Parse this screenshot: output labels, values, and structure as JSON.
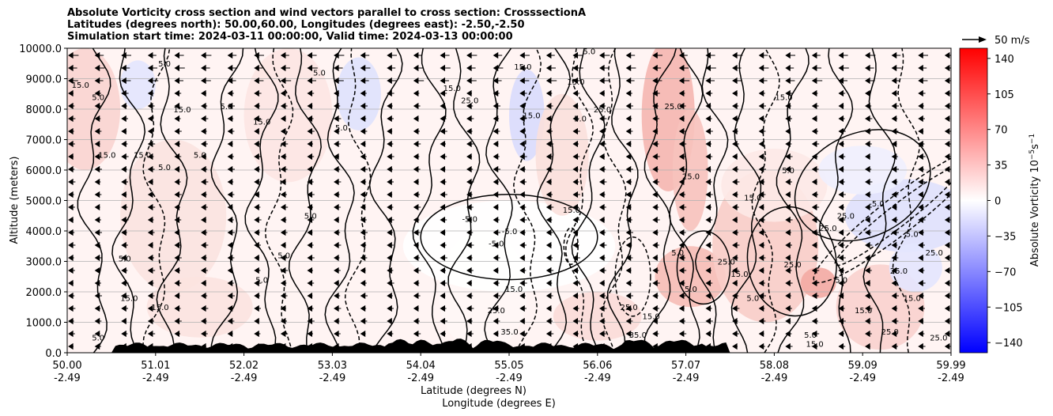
{
  "title_lines": [
    "Absolute Vorticity cross section and wind vectors parallel to cross section: CrosssectionA",
    "Latitudes (degrees north): 50.00,60.00, Longitudes (degrees east): -2.50,-2.50",
    "Simulation start time: 2024-03-11 00:00:00, Valid time: 2024-03-13 00:00:00"
  ],
  "chart_data": {
    "type": "heatmap",
    "ylabel": "Altitude (meters)",
    "xlabel_lines": [
      "Latitude (degrees N)",
      "Longitude (degrees E)"
    ],
    "y_ticks": [
      "0.0",
      "1000.0",
      "2000.0",
      "3000.0",
      "4000.0",
      "5000.0",
      "6000.0",
      "7000.0",
      "8000.0",
      "9000.0",
      "10000.0"
    ],
    "ylim": [
      0,
      10000
    ],
    "x_ticks": [
      {
        "lat": "50.00",
        "lon": "-2.49"
      },
      {
        "lat": "51.01",
        "lon": "-2.49"
      },
      {
        "lat": "52.02",
        "lon": "-2.49"
      },
      {
        "lat": "53.03",
        "lon": "-2.49"
      },
      {
        "lat": "54.04",
        "lon": "-2.49"
      },
      {
        "lat": "55.05",
        "lon": "-2.49"
      },
      {
        "lat": "56.06",
        "lon": "-2.49"
      },
      {
        "lat": "57.07",
        "lon": "-2.49"
      },
      {
        "lat": "58.08",
        "lon": "-2.49"
      },
      {
        "lat": "59.09",
        "lon": "-2.49"
      },
      {
        "lat": "59.99",
        "lon": "-2.49"
      }
    ],
    "xlim": [
      50.0,
      59.99
    ],
    "grid": "horizontal",
    "colorbar": {
      "label": "Absolute Vorticity 10^-5 s^-1",
      "ticks": [
        "140",
        "105",
        "70",
        "35",
        "0",
        "−35",
        "−70",
        "−105",
        "−140"
      ],
      "range": [
        -150,
        150
      ],
      "colormap": "bwr"
    },
    "quiver_key": "50 m/s",
    "contour_levels": [
      -5.0,
      5.0,
      15.0,
      25.0,
      35.0
    ],
    "contour_labels": [
      {
        "lat": 50.15,
        "alt": 8700,
        "text": "15.0"
      },
      {
        "lat": 50.35,
        "alt": 8300,
        "text": "5.0"
      },
      {
        "lat": 50.45,
        "alt": 6400,
        "text": "15.0"
      },
      {
        "lat": 50.85,
        "alt": 6400,
        "text": "15.0"
      },
      {
        "lat": 51.1,
        "alt": 6000,
        "text": "5.0"
      },
      {
        "lat": 51.3,
        "alt": 7900,
        "text": "15.0"
      },
      {
        "lat": 51.5,
        "alt": 6400,
        "text": "5.0"
      },
      {
        "lat": 51.1,
        "alt": 9400,
        "text": "5.0"
      },
      {
        "lat": 51.8,
        "alt": 8000,
        "text": "5.0"
      },
      {
        "lat": 51.05,
        "alt": 1400,
        "text": "15.0"
      },
      {
        "lat": 50.7,
        "alt": 1700,
        "text": "15.0"
      },
      {
        "lat": 50.65,
        "alt": 3000,
        "text": "5.0"
      },
      {
        "lat": 52.2,
        "alt": 7500,
        "text": "15.0"
      },
      {
        "lat": 52.85,
        "alt": 9100,
        "text": "5.0"
      },
      {
        "lat": 53.1,
        "alt": 7300,
        "text": "5.0"
      },
      {
        "lat": 52.75,
        "alt": 4400,
        "text": "5.0"
      },
      {
        "lat": 52.45,
        "alt": 3100,
        "text": "5.0"
      },
      {
        "lat": 52.2,
        "alt": 2300,
        "text": "5.0"
      },
      {
        "lat": 54.35,
        "alt": 8600,
        "text": "15.0"
      },
      {
        "lat": 54.55,
        "alt": 8200,
        "text": "25.0"
      },
      {
        "lat": 54.55,
        "alt": 4300,
        "text": "-5.0"
      },
      {
        "lat": 54.85,
        "alt": 3500,
        "text": "-5.0"
      },
      {
        "lat": 55.0,
        "alt": 3900,
        "text": "-5.0"
      },
      {
        "lat": 55.25,
        "alt": 7700,
        "text": "15.0"
      },
      {
        "lat": 55.15,
        "alt": 9300,
        "text": "15.0"
      },
      {
        "lat": 55.7,
        "alt": 4600,
        "text": "15.0"
      },
      {
        "lat": 55.8,
        "alt": 7600,
        "text": "5.0"
      },
      {
        "lat": 56.05,
        "alt": 7900,
        "text": "25.0"
      },
      {
        "lat": 55.75,
        "alt": 8800,
        "text": "15.0"
      },
      {
        "lat": 55.9,
        "alt": 9800,
        "text": "5.0"
      },
      {
        "lat": 55.05,
        "alt": 2000,
        "text": "15.0"
      },
      {
        "lat": 54.85,
        "alt": 1300,
        "text": "25.0"
      },
      {
        "lat": 56.6,
        "alt": 1100,
        "text": "15.0"
      },
      {
        "lat": 56.35,
        "alt": 1400,
        "text": "25.0"
      },
      {
        "lat": 57.05,
        "alt": 2000,
        "text": "5.0"
      },
      {
        "lat": 56.9,
        "alt": 3200,
        "text": "5.0"
      },
      {
        "lat": 57.05,
        "alt": 5700,
        "text": "25.0"
      },
      {
        "lat": 56.85,
        "alt": 8000,
        "text": "25.0"
      },
      {
        "lat": 58.1,
        "alt": 8300,
        "text": "15.0"
      },
      {
        "lat": 57.75,
        "alt": 5000,
        "text": "15.0"
      },
      {
        "lat": 57.45,
        "alt": 2900,
        "text": "25.0"
      },
      {
        "lat": 57.6,
        "alt": 2500,
        "text": "15.0"
      },
      {
        "lat": 58.2,
        "alt": 2800,
        "text": "25.0"
      },
      {
        "lat": 58.15,
        "alt": 5900,
        "text": "5.0"
      },
      {
        "lat": 58.6,
        "alt": 4000,
        "text": "25.0"
      },
      {
        "lat": 58.8,
        "alt": 4400,
        "text": "25.0"
      },
      {
        "lat": 58.75,
        "alt": 2300,
        "text": "5.0"
      },
      {
        "lat": 59.15,
        "alt": 4800,
        "text": "-5.0"
      },
      {
        "lat": 59.55,
        "alt": 3800,
        "text": "5.0"
      },
      {
        "lat": 59.8,
        "alt": 3200,
        "text": "25.0"
      },
      {
        "lat": 59.4,
        "alt": 2600,
        "text": "25.0"
      },
      {
        "lat": 59.55,
        "alt": 1700,
        "text": "15.0"
      },
      {
        "lat": 59.0,
        "alt": 1300,
        "text": "15.0"
      },
      {
        "lat": 59.3,
        "alt": 600,
        "text": "25.0"
      },
      {
        "lat": 58.4,
        "alt": 500,
        "text": "5.0"
      },
      {
        "lat": 58.45,
        "alt": 200,
        "text": "15.0"
      },
      {
        "lat": 59.85,
        "alt": 400,
        "text": "25.0"
      },
      {
        "lat": 57.75,
        "alt": 1700,
        "text": "5.0"
      },
      {
        "lat": 55.0,
        "alt": 600,
        "text": "35.0"
      },
      {
        "lat": 56.45,
        "alt": 500,
        "text": "35.0"
      },
      {
        "lat": 50.35,
        "alt": 400,
        "text": "5.0"
      }
    ]
  }
}
